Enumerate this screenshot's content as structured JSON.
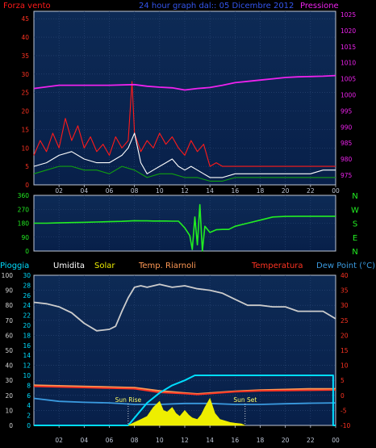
{
  "colors": {
    "background": "#000000",
    "panel_top": "#0d2a55",
    "panel_bottom": "#08204a",
    "grid": "#2e4a78",
    "axis": "#c0c8d8",
    "wind": "#ff1a1a",
    "wind_avg": "#ffffff",
    "wind_low": "#10a010",
    "pressure": "#ee22ee",
    "direction": "#22ee22",
    "humidity": "#cccccc",
    "temp_room": "#ff9955",
    "temperature": "#ff3322",
    "dew_point": "#3a9adf",
    "solar": "#eeee00",
    "rain": "#00ddff",
    "sun_marker": "#ffffff"
  },
  "chart_data": [
    {
      "type": "line",
      "title": "24 hour graph dal:: 05 Dicembre 2012",
      "left_label": "Forza vento",
      "right_label": "Pressione",
      "x_ticks": [
        "02",
        "04",
        "06",
        "08",
        "10",
        "12",
        "14",
        "16",
        "18",
        "20",
        "22",
        "00"
      ],
      "x_range": [
        0,
        24
      ],
      "y_left_ticks": [
        0,
        5,
        10,
        15,
        20,
        25,
        30,
        35,
        40,
        45
      ],
      "y_left_range": [
        0,
        47
      ],
      "y_right_ticks": [
        975,
        980,
        985,
        990,
        995,
        1000,
        1005,
        1010,
        1015,
        1020,
        1025
      ],
      "y_right_range": [
        972,
        1026
      ],
      "grid": true,
      "series": [
        {
          "name": "Forza vento",
          "color": "#ff1a1a",
          "axis": "left",
          "x": [
            0,
            0.5,
            1,
            1.5,
            2,
            2.5,
            3,
            3.5,
            4,
            4.5,
            5,
            5.5,
            6,
            6.5,
            7,
            7.5,
            7.8,
            8,
            8.5,
            9,
            9.5,
            10,
            10.5,
            11,
            11.5,
            12,
            12.5,
            13,
            13.5,
            14,
            14.5,
            15,
            16,
            17,
            18,
            19,
            20,
            21,
            22,
            23,
            24
          ],
          "y": [
            8,
            12,
            9,
            14,
            10,
            18,
            12,
            16,
            10,
            13,
            9,
            11,
            8,
            13,
            10,
            12,
            28,
            14,
            9,
            12,
            10,
            14,
            11,
            13,
            10,
            8,
            12,
            9,
            11,
            5,
            6,
            5,
            5,
            5,
            5,
            5,
            5,
            5,
            5,
            5,
            5
          ]
        },
        {
          "name": "",
          "color": "#ffffff",
          "axis": "left",
          "x": [
            0,
            1,
            2,
            3,
            4,
            5,
            6,
            7,
            7.5,
            8,
            8.5,
            9,
            9.5,
            10,
            10.5,
            11,
            11.5,
            12,
            12.5,
            13,
            13.5,
            14,
            15,
            16,
            17,
            18,
            19,
            20,
            21,
            22,
            23,
            24
          ],
          "y": [
            5,
            6,
            8,
            9,
            7,
            6,
            6,
            8,
            10,
            14,
            6,
            3,
            4,
            5,
            6,
            7,
            5,
            4,
            5,
            4,
            3,
            2,
            2,
            3,
            3,
            3,
            3,
            3,
            3,
            3,
            4,
            4
          ]
        },
        {
          "name": "",
          "color": "#10a010",
          "axis": "left",
          "x": [
            0,
            1,
            2,
            3,
            4,
            5,
            6,
            7,
            8,
            9,
            10,
            11,
            12,
            13,
            14,
            15,
            16,
            17,
            18,
            19,
            20,
            21,
            22,
            23,
            24
          ],
          "y": [
            3,
            4,
            5,
            5,
            4,
            4,
            3,
            5,
            4,
            2,
            3,
            3,
            2,
            2,
            1,
            1,
            2,
            2,
            2,
            2,
            2,
            2,
            2,
            2,
            2
          ]
        },
        {
          "name": "Pressione",
          "color": "#ee22ee",
          "axis": "right",
          "x": [
            0,
            1,
            2,
            4,
            6,
            8,
            9,
            10,
            11,
            12,
            13,
            14,
            15,
            16,
            17,
            18,
            19,
            20,
            21,
            22,
            23,
            24
          ],
          "y": [
            1002,
            1002.5,
            1003,
            1003,
            1003,
            1003.2,
            1002.7,
            1002.4,
            1002.2,
            1001.5,
            1002,
            1002.3,
            1003,
            1003.8,
            1004.2,
            1004.6,
            1005,
            1005.4,
            1005.6,
            1005.7,
            1005.8,
            1006
          ]
        }
      ]
    },
    {
      "type": "line",
      "right_labels": [
        "N",
        "W",
        "S",
        "E",
        "N"
      ],
      "x_ticks": [
        "02",
        "04",
        "06",
        "08",
        "10",
        "12",
        "14",
        "16",
        "18",
        "20",
        "22",
        "00"
      ],
      "x_range": [
        0,
        24
      ],
      "y_ticks": [
        0,
        90,
        180,
        270,
        360
      ],
      "y_range": [
        0,
        360
      ],
      "grid": true,
      "series": [
        {
          "name": "",
          "color": "#22ee22",
          "x": [
            0,
            1,
            2,
            3,
            4,
            5,
            6,
            7,
            8,
            8.5,
            9,
            9.5,
            10,
            10.5,
            11,
            11.5,
            12,
            12.4,
            12.6,
            12.8,
            13,
            13.2,
            13.4,
            13.6,
            14,
            14.5,
            15,
            15.5,
            16,
            17,
            18,
            19,
            20,
            21,
            22,
            23,
            24
          ],
          "y": [
            180,
            180,
            182,
            184,
            186,
            188,
            190,
            192,
            196,
            195,
            195,
            194,
            194,
            194,
            193,
            193,
            150,
            100,
            10,
            220,
            40,
            300,
            0,
            160,
            120,
            138,
            140,
            140,
            160,
            180,
            200,
            220,
            224,
            225,
            225,
            225,
            225
          ]
        }
      ]
    },
    {
      "type": "line",
      "legend": [
        "Pioggia",
        "Umidita",
        "Solar",
        "Temp. Riarnoli",
        "Temperatura",
        "Dew Point (°C)"
      ],
      "x_ticks": [
        "02",
        "04",
        "06",
        "08",
        "10",
        "12",
        "14",
        "16",
        "18",
        "20",
        "22",
        "00"
      ],
      "x_range": [
        0,
        24
      ],
      "y_left_outer_ticks": [
        0,
        10,
        20,
        30,
        40,
        50,
        60,
        70,
        80,
        90,
        100
      ],
      "y_left_outer_range": [
        0,
        100
      ],
      "y_left_inner_ticks": [
        0,
        2,
        4,
        6,
        8,
        10,
        12,
        14,
        16,
        18,
        20,
        22,
        24,
        26,
        28,
        30
      ],
      "y_left_inner_range": [
        0,
        30
      ],
      "y_right_ticks": [
        -10,
        -5,
        0,
        5,
        10,
        15,
        20,
        25,
        30,
        35,
        40
      ],
      "y_right_range": [
        -10,
        40
      ],
      "annotations": [
        "Sun Rise",
        "Sun Set"
      ],
      "sun_rise_x": 7.5,
      "sun_set_x": 16.8,
      "grid": true,
      "series": [
        {
          "name": "Umidita",
          "color": "#cccccc",
          "axis": "outer",
          "x": [
            0,
            1,
            2,
            3,
            4,
            5,
            6,
            6.5,
            7,
            7.5,
            8,
            8.5,
            9,
            10,
            11,
            12,
            13,
            14,
            15,
            16,
            17,
            18,
            19,
            20,
            21,
            22,
            23,
            24
          ],
          "y": [
            82,
            81,
            79,
            75,
            68,
            63,
            64,
            66,
            76,
            85,
            92,
            93,
            92,
            94,
            92,
            93,
            91,
            90,
            88,
            84,
            80,
            80,
            79,
            79,
            76,
            76,
            76,
            71
          ]
        },
        {
          "name": "Temp. Riarnoli",
          "color": "#ff9955",
          "axis": "right",
          "x": [
            0,
            2,
            4,
            6,
            8,
            10,
            12,
            13,
            14,
            16,
            18,
            20,
            22,
            24
          ],
          "y": [
            3.4,
            3.2,
            3.0,
            2.8,
            2.6,
            1.5,
            0.8,
            0.5,
            0.8,
            1.4,
            1.8,
            2.0,
            2.2,
            2.2
          ]
        },
        {
          "name": "Temperatura",
          "color": "#ff3322",
          "axis": "right",
          "x": [
            0,
            2,
            4,
            6,
            8,
            10,
            12,
            13,
            14,
            16,
            18,
            20,
            22,
            24
          ],
          "y": [
            3,
            2.8,
            2.6,
            2.4,
            2.2,
            1,
            0.6,
            0.3,
            0.6,
            1.2,
            1.5,
            1.6,
            1.7,
            1.8
          ]
        },
        {
          "name": "Dew Point",
          "color": "#3a9adf",
          "axis": "right",
          "x": [
            0,
            2,
            4,
            6,
            8,
            10,
            12,
            14,
            16,
            18,
            20,
            22,
            24
          ],
          "y": [
            -1,
            -2,
            -2.3,
            -2.5,
            -3,
            -3,
            -2.7,
            -2.7,
            -3,
            -3,
            -2.8,
            -2.6,
            -2.5
          ]
        },
        {
          "name": "Pioggia",
          "color": "#00ddff",
          "axis": "inner",
          "x": [
            0,
            7.5,
            8,
            9,
            10,
            11,
            12,
            12.8,
            13,
            23.8,
            23.8,
            24
          ],
          "y": [
            0,
            0,
            1.5,
            4.5,
            6.5,
            8,
            9,
            10,
            10,
            10,
            0,
            0
          ]
        },
        {
          "name": "Solar",
          "color": "#eeee00",
          "axis": "outer",
          "x": [
            7.5,
            8,
            8.5,
            9,
            9.5,
            10,
            10.3,
            10.6,
            11,
            11.3,
            11.6,
            12,
            12.3,
            12.6,
            13,
            13.3,
            13.6,
            14,
            14.4,
            14.8,
            15.2,
            15.6,
            16,
            16.5,
            16.8
          ],
          "y": [
            0,
            2,
            4,
            6,
            12,
            16,
            10,
            9,
            12,
            8,
            6,
            10,
            7,
            5,
            4,
            7,
            12,
            18,
            8,
            4,
            3,
            2,
            1.5,
            1,
            0
          ]
        }
      ]
    }
  ]
}
